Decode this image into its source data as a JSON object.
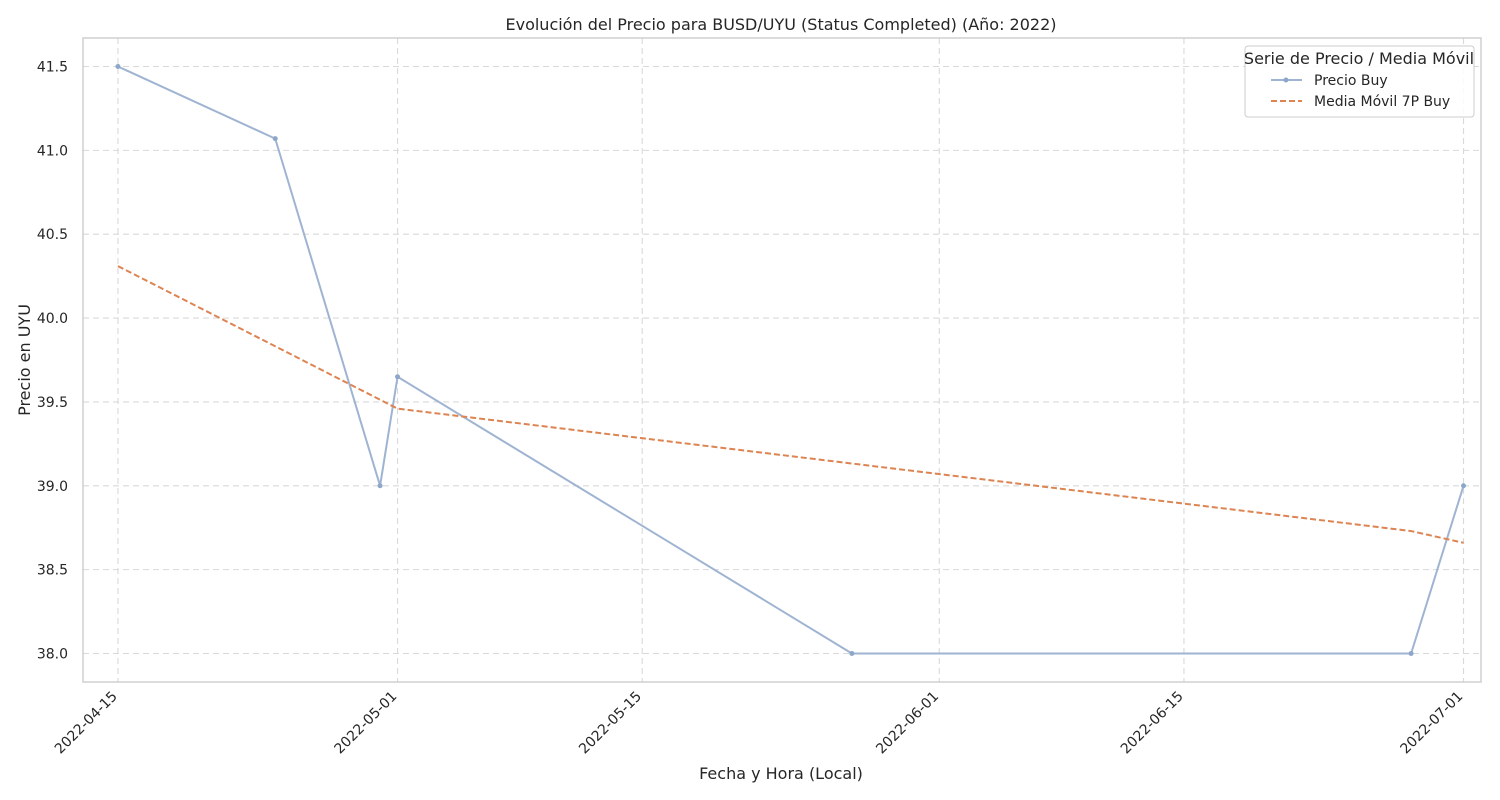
{
  "chart_data": {
    "type": "line",
    "title": "Evolución del Precio para BUSD/UYU (Status Completed) (Año: 2022)",
    "xlabel": "Fecha y Hora (Local)",
    "ylabel": "Precio en UYU",
    "x_type": "date",
    "xlim": [
      "2022-04-13",
      "2022-07-02"
    ],
    "ylim": [
      37.83,
      41.67
    ],
    "x_ticks": [
      "2022-04-15",
      "2022-05-01",
      "2022-05-15",
      "2022-06-01",
      "2022-06-15",
      "2022-07-01"
    ],
    "y_ticks": [
      38.0,
      38.5,
      39.0,
      39.5,
      40.0,
      40.5,
      41.0,
      41.5
    ],
    "y_tick_labels": [
      "38.0",
      "38.5",
      "39.0",
      "39.5",
      "40.0",
      "40.5",
      "41.0",
      "41.5"
    ],
    "grid": true,
    "legend": {
      "title": "Serie de Precio / Media Móvil",
      "placement": "top-right"
    },
    "series": [
      {
        "name": "Precio Buy",
        "style": "solid",
        "marker": "dot",
        "color": "#9fb4d2",
        "x": [
          "2022-04-15",
          "2022-04-24",
          "2022-04-30",
          "2022-05-01",
          "2022-05-27",
          "2022-06-28",
          "2022-07-01"
        ],
        "y": [
          41.5,
          41.07,
          39.0,
          39.65,
          38.0,
          38.0,
          39.0
        ]
      },
      {
        "name": "Media Móvil 7P Buy",
        "style": "dashed",
        "marker": "none",
        "color": "#dd8452",
        "x": [
          "2022-04-15",
          "2022-05-01",
          "2022-06-28",
          "2022-07-01"
        ],
        "y": [
          40.31,
          39.46,
          38.73,
          38.66
        ]
      }
    ]
  }
}
